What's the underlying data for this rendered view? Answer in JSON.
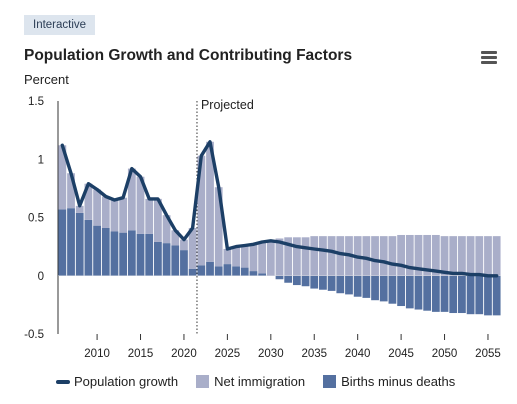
{
  "tag": "Interactive",
  "header": {
    "title": "Population Growth and Contributing Factors",
    "menu_icon": "hamburger-menu-icon"
  },
  "colors": {
    "population_growth": "#1c3f66",
    "net_immigration": "#a9aec9",
    "births_minus_deaths": "#5470a0"
  },
  "chart_data": {
    "type": "bar",
    "title": "Population Growth and Contributing Factors",
    "ylabel": "Percent",
    "ylim": [
      -0.5,
      1.5
    ],
    "yticks": [
      "1.5",
      "1",
      "0.5",
      "0",
      "-0.5"
    ],
    "xticks": [
      "2010",
      "2015",
      "2020",
      "2025",
      "2030",
      "2035",
      "2040",
      "2045",
      "2050",
      "2055"
    ],
    "annotation": "Projected",
    "projected_from": 2021.5,
    "x": [
      2006,
      2007,
      2008,
      2009,
      2010,
      2011,
      2012,
      2013,
      2014,
      2015,
      2016,
      2017,
      2018,
      2019,
      2020,
      2021,
      2022,
      2023,
      2024,
      2025,
      2026,
      2027,
      2028,
      2029,
      2030,
      2031,
      2032,
      2033,
      2034,
      2035,
      2036,
      2037,
      2038,
      2039,
      2040,
      2041,
      2042,
      2043,
      2044,
      2045,
      2046,
      2047,
      2048,
      2049,
      2050,
      2051,
      2052,
      2053,
      2054,
      2055,
      2056
    ],
    "series": [
      {
        "name": "Population growth",
        "type": "line",
        "values": [
          1.12,
          0.88,
          0.6,
          0.79,
          0.74,
          0.68,
          0.65,
          0.67,
          0.92,
          0.85,
          0.66,
          0.66,
          0.52,
          0.39,
          0.31,
          0.41,
          1.03,
          1.15,
          0.76,
          0.23,
          0.25,
          0.26,
          0.27,
          0.29,
          0.3,
          0.29,
          0.27,
          0.25,
          0.24,
          0.23,
          0.22,
          0.21,
          0.19,
          0.18,
          0.16,
          0.15,
          0.13,
          0.12,
          0.1,
          0.09,
          0.07,
          0.06,
          0.05,
          0.04,
          0.03,
          0.02,
          0.02,
          0.01,
          0.01,
          0.0,
          0.0
        ]
      },
      {
        "name": "Net immigration",
        "type": "stacked-bar",
        "values": [
          0.55,
          0.3,
          0.06,
          0.31,
          0.31,
          0.27,
          0.27,
          0.3,
          0.53,
          0.49,
          0.3,
          0.37,
          0.24,
          0.13,
          0.09,
          0.35,
          0.94,
          1.03,
          0.68,
          0.13,
          0.17,
          0.19,
          0.23,
          0.27,
          0.3,
          0.32,
          0.33,
          0.33,
          0.33,
          0.34,
          0.34,
          0.34,
          0.34,
          0.34,
          0.34,
          0.34,
          0.34,
          0.34,
          0.34,
          0.35,
          0.35,
          0.35,
          0.35,
          0.35,
          0.34,
          0.34,
          0.34,
          0.34,
          0.34,
          0.34,
          0.34
        ]
      },
      {
        "name": "Births minus deaths",
        "type": "stacked-bar",
        "values": [
          0.57,
          0.58,
          0.54,
          0.48,
          0.43,
          0.41,
          0.38,
          0.37,
          0.39,
          0.36,
          0.36,
          0.29,
          0.28,
          0.26,
          0.22,
          0.06,
          0.09,
          0.12,
          0.08,
          0.1,
          0.08,
          0.07,
          0.04,
          0.02,
          0.0,
          -0.03,
          -0.06,
          -0.08,
          -0.09,
          -0.11,
          -0.12,
          -0.13,
          -0.15,
          -0.16,
          -0.18,
          -0.19,
          -0.21,
          -0.22,
          -0.24,
          -0.26,
          -0.28,
          -0.29,
          -0.3,
          -0.31,
          -0.31,
          -0.32,
          -0.32,
          -0.33,
          -0.33,
          -0.34,
          -0.34
        ]
      }
    ],
    "legend": [
      "Population growth",
      "Net immigration",
      "Births minus deaths"
    ],
    "legend_position": "bottom"
  }
}
